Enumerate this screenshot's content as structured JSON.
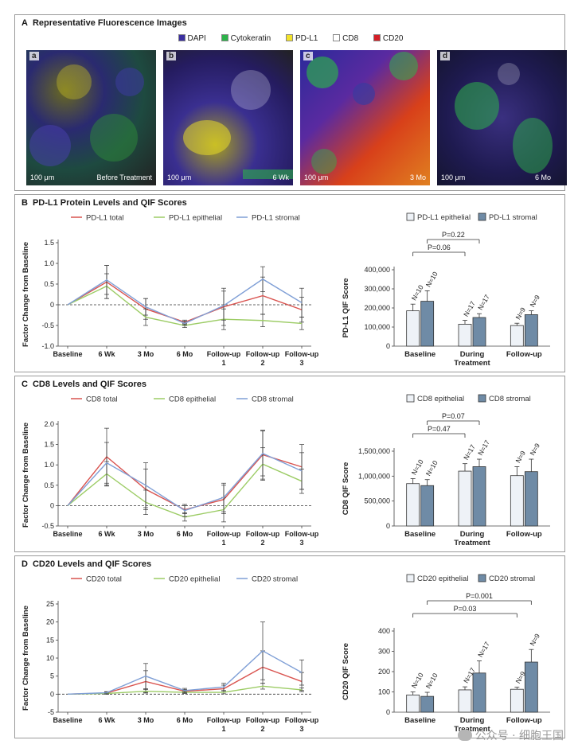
{
  "panel_a": {
    "letter": "A",
    "title": "Representative Fluorescence Images",
    "legend": [
      {
        "label": "DAPI",
        "color": "#3b2fa0"
      },
      {
        "label": "Cytokeratin",
        "color": "#2db34a"
      },
      {
        "label": "PD-L1",
        "color": "#f2e22a"
      },
      {
        "label": "CD8",
        "color": "#ffffff"
      },
      {
        "label": "CD20",
        "color": "#d41f26"
      }
    ],
    "images": [
      {
        "tag": "a",
        "scale": "100 μm",
        "time": "Before Treatment"
      },
      {
        "tag": "b",
        "scale": "100 μm",
        "time": "6 Wk"
      },
      {
        "tag": "c",
        "scale": "100 μm",
        "time": "3 Mo"
      },
      {
        "tag": "d",
        "scale": "100 μm",
        "time": "6 Mo"
      }
    ]
  },
  "colors": {
    "total": "#d9534f",
    "epithelial": "#9ccc65",
    "stromal": "#7f9fd6",
    "bar_epithelial": "#eef2f7",
    "bar_stromal": "#6f8ba6"
  },
  "panel_b": {
    "letter": "B",
    "title": "PD-L1 Protein Levels and QIF Scores",
    "line": {
      "ylabel": "Factor Change from Baseline",
      "ylim": [
        -1.0,
        1.5
      ],
      "yticks": [
        "1.5",
        "1.0",
        "0.5",
        "0",
        "-0.5",
        "-1.0"
      ],
      "ytick_values": [
        1.5,
        1.0,
        0.5,
        0,
        -0.5,
        -1.0
      ],
      "categories": [
        "Baseline",
        "6 Wk",
        "3 Mo",
        "6 Mo",
        "Follow-up 1",
        "Follow-up 2",
        "Follow-up 3"
      ],
      "series": [
        {
          "name": "PD-L1 total",
          "key": "total",
          "values": [
            0,
            0.55,
            -0.1,
            -0.42,
            -0.05,
            0.22,
            -0.12
          ],
          "err": [
            0,
            0.4,
            0.25,
            0.05,
            0.45,
            0.45,
            0.3
          ]
        },
        {
          "name": "PD-L1 epithelial",
          "key": "epithelial",
          "values": [
            0,
            0.45,
            -0.3,
            -0.5,
            -0.35,
            -0.38,
            -0.45
          ],
          "err": [
            0,
            0.3,
            0.2,
            0.05,
            0.25,
            0.15,
            0.15
          ]
        },
        {
          "name": "PD-L1 stromal",
          "key": "stromal",
          "values": [
            0,
            0.6,
            -0.05,
            -0.45,
            -0.02,
            0.62,
            0.05
          ],
          "err": [
            0,
            0.35,
            0.2,
            0.05,
            0.35,
            0.3,
            0.35
          ]
        }
      ]
    },
    "bar": {
      "ylabel": "PD-L1 QIF Score",
      "ylim": [
        0,
        400000
      ],
      "yticks": [
        "400,000",
        "300,000",
        "200,000",
        "100,000",
        "0"
      ],
      "ytick_values": [
        400000,
        300000,
        200000,
        100000,
        0
      ],
      "categories": [
        "Baseline",
        "During Treatment",
        "Follow-up"
      ],
      "series": [
        {
          "name": "PD-L1 epithelial",
          "key": "epithelial",
          "values": [
            185000,
            115000,
            108000
          ],
          "err": [
            35000,
            20000,
            12000
          ],
          "n": [
            "N=10",
            "N=17",
            "N=9"
          ]
        },
        {
          "name": "PD-L1 stromal",
          "key": "stromal",
          "values": [
            235000,
            150000,
            165000
          ],
          "err": [
            55000,
            20000,
            20000
          ],
          "n": [
            "N=10",
            "N=17",
            "N=9"
          ]
        }
      ],
      "pvalues": [
        {
          "text": "P=0.22",
          "from": [
            0,
            1
          ],
          "to": [
            1,
            1
          ]
        },
        {
          "text": "P=0.06",
          "from": [
            0,
            0
          ],
          "to": [
            1,
            0
          ]
        }
      ]
    }
  },
  "panel_c": {
    "letter": "C",
    "title": "CD8 Levels and QIF Scores",
    "line": {
      "ylabel": "Factor Change from Baseline",
      "ylim": [
        -0.5,
        2.0
      ],
      "yticks": [
        "2.0",
        "1.5",
        "1.0",
        "0.5",
        "0",
        "-0.5"
      ],
      "ytick_values": [
        2.0,
        1.5,
        1.0,
        0.5,
        0,
        -0.5
      ],
      "categories": [
        "Baseline",
        "6 Wk",
        "3 Mo",
        "6 Mo",
        "Follow-up 1",
        "Follow-up 2",
        "Follow-up 3"
      ],
      "series": [
        {
          "name": "CD8 total",
          "key": "total",
          "values": [
            0,
            1.2,
            0.4,
            -0.1,
            0.15,
            1.25,
            0.95
          ],
          "err": [
            0,
            0.7,
            0.5,
            0.1,
            0.35,
            0.6,
            0.55
          ]
        },
        {
          "name": "CD8 epithelial",
          "key": "epithelial",
          "values": [
            0,
            0.78,
            0.08,
            -0.28,
            -0.1,
            1.02,
            0.6
          ],
          "err": [
            0,
            0.3,
            0.3,
            0.1,
            0.3,
            0.4,
            0.3
          ]
        },
        {
          "name": "CD8 stromal",
          "key": "stromal",
          "values": [
            0,
            1.05,
            0.5,
            -0.12,
            0.2,
            1.28,
            0.85
          ],
          "err": [
            0,
            0.5,
            0.55,
            0.15,
            0.35,
            0.55,
            0.45
          ]
        }
      ]
    },
    "bar": {
      "ylabel": "CD8 QIF Score",
      "ylim": [
        0,
        1500000
      ],
      "yticks": [
        "1,500,000",
        "1,000,000",
        "500,000",
        "0"
      ],
      "ytick_values": [
        1500000,
        1000000,
        500000,
        0
      ],
      "categories": [
        "Baseline",
        "During Treatment",
        "Follow-up"
      ],
      "series": [
        {
          "name": "CD8  epithelial",
          "key": "epithelial",
          "values": [
            850000,
            1100000,
            1010000
          ],
          "err": [
            100000,
            150000,
            180000
          ],
          "n": [
            "N=10",
            "N=17",
            "N=9"
          ]
        },
        {
          "name": "CD8 stromal",
          "key": "stromal",
          "values": [
            810000,
            1190000,
            1090000
          ],
          "err": [
            120000,
            150000,
            250000
          ],
          "n": [
            "N=10",
            "N=17",
            "N=9"
          ]
        }
      ],
      "pvalues": [
        {
          "text": "P=0.07",
          "from": [
            0,
            1
          ],
          "to": [
            1,
            1
          ]
        },
        {
          "text": "P=0.47",
          "from": [
            0,
            0
          ],
          "to": [
            1,
            0
          ]
        }
      ]
    }
  },
  "panel_d": {
    "letter": "D",
    "title": "CD20 Levels and QIF Scores",
    "line": {
      "ylabel": "Factor Change from Baseline",
      "ylim": [
        -5,
        25
      ],
      "yticks": [
        "25",
        "20",
        "15",
        "10",
        "5",
        "0",
        "-5"
      ],
      "ytick_values": [
        25,
        20,
        15,
        10,
        5,
        0,
        -5
      ],
      "categories": [
        "Baseline",
        "6 Wk",
        "3 Mo",
        "6 Mo",
        "Follow-up 1",
        "Follow-up 2",
        "Follow-up 3"
      ],
      "series": [
        {
          "name": "CD20 total",
          "key": "total",
          "values": [
            0,
            0.3,
            3.5,
            0.8,
            1.5,
            7.5,
            3.5
          ],
          "err": [
            0,
            0.3,
            3.0,
            0.5,
            1.0,
            4.5,
            2.5
          ]
        },
        {
          "name": "CD20 epithelial",
          "key": "epithelial",
          "values": [
            0,
            0.2,
            0.8,
            0.5,
            0.5,
            2.2,
            1.2
          ],
          "err": [
            0,
            0.2,
            0.5,
            0.3,
            0.4,
            0.8,
            0.5
          ]
        },
        {
          "name": "CD20 stromal",
          "key": "stromal",
          "values": [
            0,
            0.4,
            5.0,
            1.0,
            2.0,
            12.0,
            6.0
          ],
          "err": [
            0,
            0.3,
            3.5,
            0.6,
            1.0,
            8.0,
            3.5
          ]
        }
      ]
    },
    "bar": {
      "ylabel": "CD20 QIF Score",
      "ylim": [
        0,
        400
      ],
      "yticks": [
        "400",
        "300",
        "200",
        "100",
        "0"
      ],
      "ytick_values": [
        400,
        300,
        200,
        100,
        0
      ],
      "categories": [
        "Baseline",
        "During Treatment",
        "Follow-up"
      ],
      "series": [
        {
          "name": "CD20 epithelial",
          "key": "epithelial",
          "values": [
            85,
            110,
            113
          ],
          "err": [
            15,
            15,
            10
          ],
          "n": [
            "N=10",
            "N=17",
            "N=9"
          ]
        },
        {
          "name": "CD20 stromal",
          "key": "stromal",
          "values": [
            78,
            193,
            247
          ],
          "err": [
            20,
            60,
            62
          ],
          "n": [
            "N=10",
            "N=17",
            "N=9"
          ]
        }
      ],
      "pvalues": [
        {
          "text": "P=0.001",
          "from": [
            0,
            1
          ],
          "to": [
            2,
            1
          ]
        },
        {
          "text": "P=0.03",
          "from": [
            0,
            0
          ],
          "to": [
            2,
            0
          ]
        }
      ]
    }
  },
  "watermark": "公众号 · 细胞王国",
  "chart_data": [
    {
      "type": "line",
      "title": "PD-L1 Protein Levels and QIF Scores",
      "ylabel": "Factor Change from Baseline",
      "ylim": [
        -1.0,
        1.5
      ],
      "x": [
        "Baseline",
        "6 Wk",
        "3 Mo",
        "6 Mo",
        "Follow-up 1",
        "Follow-up 2",
        "Follow-up 3"
      ],
      "series": [
        {
          "name": "PD-L1 total",
          "values": [
            0,
            0.55,
            -0.1,
            -0.42,
            -0.05,
            0.22,
            -0.12
          ]
        },
        {
          "name": "PD-L1 epithelial",
          "values": [
            0,
            0.45,
            -0.3,
            -0.5,
            -0.35,
            -0.38,
            -0.45
          ]
        },
        {
          "name": "PD-L1 stromal",
          "values": [
            0,
            0.6,
            -0.05,
            -0.45,
            -0.02,
            0.62,
            0.05
          ]
        }
      ]
    },
    {
      "type": "bar",
      "ylabel": "PD-L1 QIF Score",
      "ylim": [
        0,
        400000
      ],
      "categories": [
        "Baseline",
        "During Treatment",
        "Follow-up"
      ],
      "series": [
        {
          "name": "PD-L1 epithelial",
          "values": [
            185000,
            115000,
            108000
          ]
        },
        {
          "name": "PD-L1 stromal",
          "values": [
            235000,
            150000,
            165000
          ]
        }
      ]
    },
    {
      "type": "line",
      "title": "CD8 Levels and QIF Scores",
      "ylabel": "Factor Change from Baseline",
      "ylim": [
        -0.5,
        2.0
      ],
      "x": [
        "Baseline",
        "6 Wk",
        "3 Mo",
        "6 Mo",
        "Follow-up 1",
        "Follow-up 2",
        "Follow-up 3"
      ],
      "series": [
        {
          "name": "CD8 total",
          "values": [
            0,
            1.2,
            0.4,
            -0.1,
            0.15,
            1.25,
            0.95
          ]
        },
        {
          "name": "CD8 epithelial",
          "values": [
            0,
            0.78,
            0.08,
            -0.28,
            -0.1,
            1.02,
            0.6
          ]
        },
        {
          "name": "CD8 stromal",
          "values": [
            0,
            1.05,
            0.5,
            -0.12,
            0.2,
            1.28,
            0.85
          ]
        }
      ]
    },
    {
      "type": "bar",
      "ylabel": "CD8 QIF Score",
      "ylim": [
        0,
        1500000
      ],
      "categories": [
        "Baseline",
        "During Treatment",
        "Follow-up"
      ],
      "series": [
        {
          "name": "CD8  epithelial",
          "values": [
            850000,
            1100000,
            1010000
          ]
        },
        {
          "name": "CD8 stromal",
          "values": [
            810000,
            1190000,
            1090000
          ]
        }
      ]
    },
    {
      "type": "line",
      "title": "CD20 Levels and QIF Scores",
      "ylabel": "Factor Change from Baseline",
      "ylim": [
        -5,
        25
      ],
      "x": [
        "Baseline",
        "6 Wk",
        "3 Mo",
        "6 Mo",
        "Follow-up 1",
        "Follow-up 2",
        "Follow-up 3"
      ],
      "series": [
        {
          "name": "CD20 total",
          "values": [
            0,
            0.3,
            3.5,
            0.8,
            1.5,
            7.5,
            3.5
          ]
        },
        {
          "name": "CD20 epithelial",
          "values": [
            0,
            0.2,
            0.8,
            0.5,
            0.5,
            2.2,
            1.2
          ]
        },
        {
          "name": "CD20 stromal",
          "values": [
            0,
            0.4,
            5.0,
            1.0,
            2.0,
            12.0,
            6.0
          ]
        }
      ]
    },
    {
      "type": "bar",
      "ylabel": "CD20 QIF Score",
      "ylim": [
        0,
        400
      ],
      "categories": [
        "Baseline",
        "During Treatment",
        "Follow-up"
      ],
      "series": [
        {
          "name": "CD20 epithelial",
          "values": [
            85,
            110,
            113
          ]
        },
        {
          "name": "CD20 stromal",
          "values": [
            78,
            193,
            247
          ]
        }
      ]
    }
  ]
}
